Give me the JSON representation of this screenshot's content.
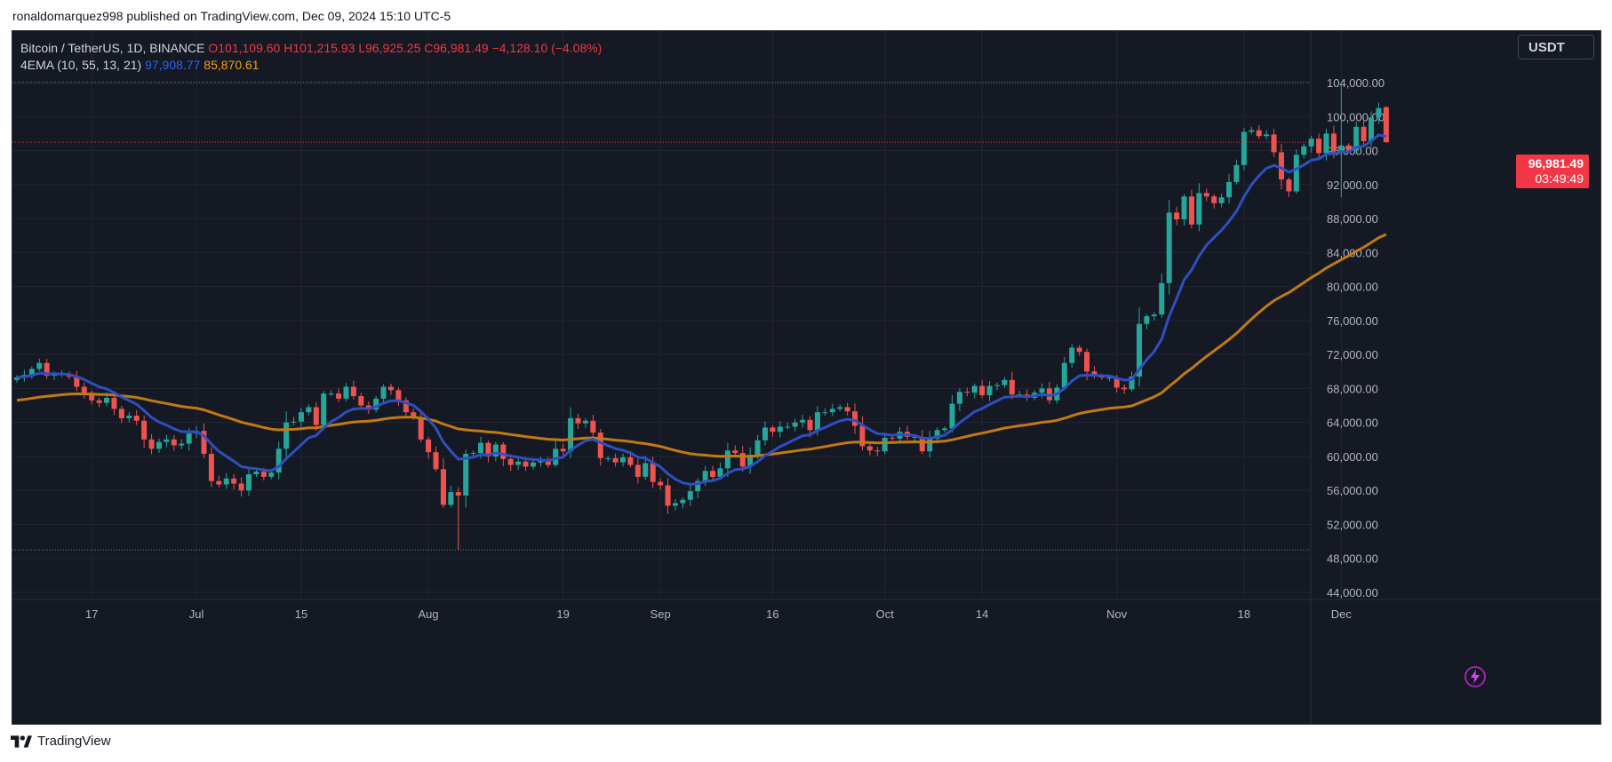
{
  "publisher": "ronaldomarquez998 published on TradingView.com, Dec 09, 2024 15:10 UTC-5",
  "legend": {
    "symbol": "Bitcoin / TetherUS, 1D, BINANCE",
    "open": "O101,109.60",
    "high": "H101,215.93",
    "low": "L96,925.25",
    "close": "C96,981.49",
    "change": "−4,128.10 (−4.08%)",
    "indicator": "4EMA (10, 55, 13, 21)",
    "ema_fast": "97,908.77",
    "ema_slow": "85,870.61"
  },
  "currency": "USDT",
  "last_price": "96,981.49",
  "countdown": "03:49:49",
  "footer_brand": "TradingView",
  "colors": {
    "up": "#26a69a",
    "down": "#ef5350",
    "ema_fast": "#2e4fbf",
    "ema_slow": "#c07a14",
    "background": "#151924",
    "grid": "#232632"
  },
  "chart_data": {
    "type": "candlestick",
    "interval": "1D",
    "ylim": [
      42000,
      106000
    ],
    "y_ticks": [
      "104,000.00",
      "100,000.00",
      "96,000.00",
      "92,000.00",
      "88,000.00",
      "84,000.00",
      "80,000.00",
      "76,000.00",
      "72,000.00",
      "68,000.00",
      "64,000.00",
      "60,000.00",
      "56,000.00",
      "52,000.00",
      "48,000.00",
      "44,000.00"
    ],
    "x_ticks": [
      {
        "label": "17",
        "date": "2024-06-17"
      },
      {
        "label": "Jul",
        "date": "2024-07-01"
      },
      {
        "label": "15",
        "date": "2024-07-15"
      },
      {
        "label": "Aug",
        "date": "2024-08-01"
      },
      {
        "label": "19",
        "date": "2024-08-19"
      },
      {
        "label": "Sep",
        "date": "2024-09-01"
      },
      {
        "label": "16",
        "date": "2024-09-16"
      },
      {
        "label": "Oct",
        "date": "2024-10-01"
      },
      {
        "label": "14",
        "date": "2024-10-14"
      },
      {
        "label": "Nov",
        "date": "2024-11-01"
      },
      {
        "label": "18",
        "date": "2024-11-18"
      },
      {
        "label": "Dec",
        "date": "2024-12-01"
      }
    ],
    "first_date": "2024-06-07",
    "dotted_levels": [
      104000,
      49000
    ],
    "last_price": 96981.49,
    "close_series": [
      69300,
      69600,
      70300,
      71000,
      69500,
      69600,
      69700,
      69400,
      68200,
      67500,
      66600,
      66300,
      66900,
      65600,
      64500,
      64800,
      64200,
      62000,
      60900,
      61700,
      62000,
      61300,
      61500,
      62700,
      63000,
      60300,
      57100,
      56700,
      57400,
      56800,
      56000,
      57900,
      58200,
      57600,
      58100,
      60900,
      64000,
      64100,
      65200,
      65800,
      63700,
      67400,
      67400,
      66800,
      68200,
      67100,
      66000,
      65500,
      66800,
      68200,
      67800,
      66600,
      65200,
      64600,
      62000,
      60500,
      58500,
      54300,
      55800,
      55400,
      60300,
      60400,
      61600,
      60000,
      61400,
      59700,
      59000,
      59400,
      58800,
      59300,
      59500,
      59000,
      60900,
      60600,
      64500,
      63900,
      64200,
      62800,
      59800,
      59800,
      59300,
      59900,
      59000,
      57600,
      59200,
      57000,
      56600,
      54200,
      54500,
      54900,
      55900,
      57100,
      58300,
      57600,
      58600,
      60700,
      60400,
      58800,
      60200,
      61900,
      63400,
      62900,
      63500,
      63500,
      64000,
      64300,
      63100,
      65200,
      65200,
      65600,
      65800,
      65300,
      63600,
      61200,
      60700,
      60600,
      62200,
      62100,
      62900,
      62300,
      62300,
      60600,
      62100,
      63100,
      63300,
      66200,
      67600,
      67500,
      68300,
      67200,
      68300,
      68400,
      69000,
      67300,
      67300,
      66900,
      67500,
      68000,
      66600,
      68100,
      71000,
      72800,
      72300,
      70000,
      69400,
      69300,
      69300,
      68100,
      67900,
      69400,
      75600,
      76500,
      76700,
      80400,
      88700,
      87900,
      90600,
      87300,
      91000,
      90600,
      89800,
      90500,
      92300,
      94300,
      98200,
      98400,
      97700,
      97900,
      95800,
      92600,
      91200,
      95500,
      96500,
      97400,
      95700,
      98000,
      96000,
      96600,
      96000,
      98800,
      97100,
      99900,
      101000,
      96981.49
    ],
    "ema_10": 97908.77,
    "ema_55": 85870.61
  }
}
